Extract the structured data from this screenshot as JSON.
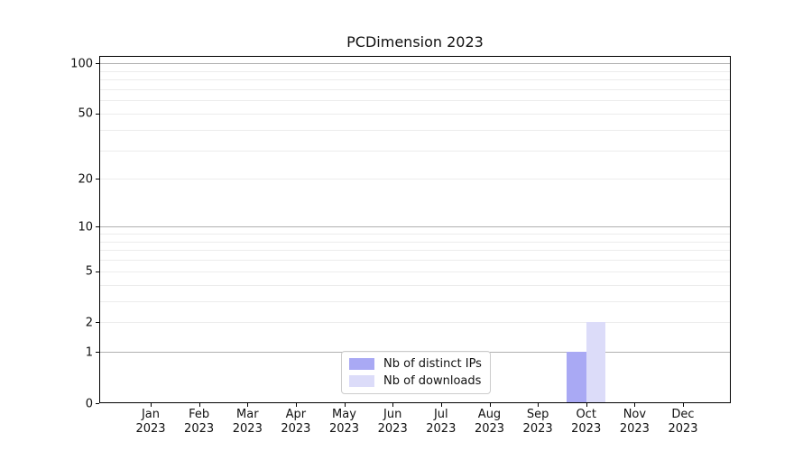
{
  "chart_data": {
    "type": "bar",
    "title": "PCDimension 2023",
    "categories": [
      "Jan",
      "Feb",
      "Mar",
      "Apr",
      "May",
      "Jun",
      "Jul",
      "Aug",
      "Sep",
      "Oct",
      "Nov",
      "Dec"
    ],
    "category_sublabel": "2023",
    "series": [
      {
        "name": "Nb of distinct IPs",
        "color": "#a9a9f4",
        "values": [
          0,
          0,
          0,
          0,
          0,
          0,
          0,
          0,
          0,
          1,
          0,
          0
        ]
      },
      {
        "name": "Nb of downloads",
        "color": "#dcdcf9",
        "values": [
          0,
          0,
          0,
          0,
          0,
          0,
          0,
          0,
          0,
          2,
          0,
          0
        ]
      }
    ],
    "xlabel": "",
    "ylabel": "",
    "y_scale": "log1p",
    "ylim": [
      0,
      110.5
    ],
    "y_tick_values": [
      0,
      1,
      2,
      5,
      10,
      20,
      50,
      100
    ],
    "y_tick_labels": [
      "0",
      "1",
      "2",
      "5",
      "10",
      "20",
      "50",
      "100"
    ],
    "major_gridline_values": [
      1,
      10,
      100
    ],
    "minor_gridline_values": [
      2,
      3,
      4,
      5,
      6,
      7,
      8,
      9,
      20,
      30,
      40,
      50,
      60,
      70,
      80,
      90
    ],
    "grid": "on",
    "legend_position": "lower center",
    "colors": {
      "major_grid": "#b0b0b0",
      "minor_grid": "#ececec",
      "spine": "#000000",
      "text": "#111111"
    }
  }
}
